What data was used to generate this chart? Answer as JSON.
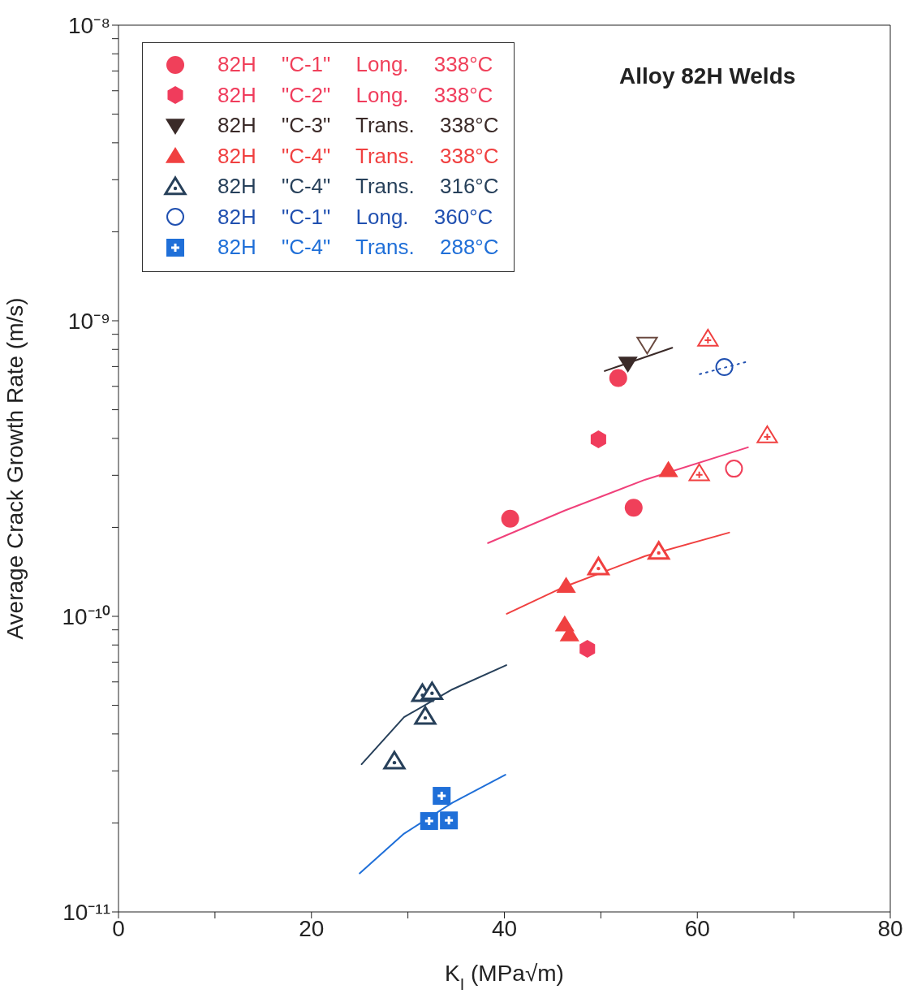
{
  "chart_data": {
    "type": "scatter",
    "title": "Alloy 82H Welds",
    "xlabel": "K$_{I}$   (MPa√m)",
    "ylabel": "Average Crack Growth Rate   (m/s)",
    "log": "y",
    "xlim": [
      0,
      80
    ],
    "ylim": [
      1e-11,
      1e-08
    ],
    "xticks": [
      0,
      {
        "value": 10,
        "label": null
      },
      20,
      {
        "value": 30,
        "label": null
      },
      40,
      {
        "value": 50,
        "label": null
      },
      60,
      {
        "value": 70,
        "label": null
      },
      80
    ],
    "yticks": [
      {
        "value": 1e-11,
        "label": "10⁻¹¹"
      },
      {
        "value": 2e-11,
        "label": null
      },
      {
        "value": 3e-11,
        "label": null
      },
      {
        "value": 4e-11,
        "label": null
      },
      {
        "value": 5e-11,
        "label": null
      },
      {
        "value": 6e-11,
        "label": null
      },
      {
        "value": 7e-11,
        "label": null
      },
      {
        "value": 8e-11,
        "label": null
      },
      {
        "value": 9e-11,
        "label": null
      },
      {
        "value": 1e-10,
        "label": "10⁻¹⁰"
      },
      {
        "value": 2e-10,
        "label": null
      },
      {
        "value": 3e-10,
        "label": null
      },
      {
        "value": 4e-10,
        "label": null
      },
      {
        "value": 5e-10,
        "label": null
      },
      {
        "value": 6e-10,
        "label": null
      },
      {
        "value": 7e-10,
        "label": null
      },
      {
        "value": 8e-10,
        "label": null
      },
      {
        "value": 9e-10,
        "label": null
      },
      {
        "value": 1e-09,
        "label": "10⁻⁹"
      },
      {
        "value": 2e-09,
        "label": null
      },
      {
        "value": 3e-09,
        "label": null
      },
      {
        "value": 4e-09,
        "label": null
      },
      {
        "value": 5e-09,
        "label": null
      },
      {
        "value": 6e-09,
        "label": null
      },
      {
        "value": 7e-09,
        "label": null
      },
      {
        "value": 8e-09,
        "label": null
      },
      {
        "value": 9e-09,
        "label": null
      },
      {
        "value": 1e-08,
        "label": "10⁻⁸"
      }
    ],
    "grid": false,
    "legend": "top left",
    "series": [
      {
        "name": "82H \"C-1\" Long. 338°C",
        "type": "scatter",
        "marker": "circle",
        "color": "#f0405a",
        "x": [
          51.8,
          40.6,
          53.4
        ],
        "values": [
          6.4e-10,
          2.14e-10,
          2.33e-10
        ]
      },
      {
        "name": "82H \"C-2\" Long. 338°C",
        "type": "scatter",
        "color": "#f03c5c",
        "x": [
          49.75,
          48.6
        ],
        "values": [
          3.97e-10,
          7.76e-11
        ]
      },
      {
        "name": "82H \"C-3\" Trans. 338°C",
        "type": "scatter",
        "marker": "triangle-down",
        "color": "#3a2a28",
        "x": [
          52.8
        ],
        "values": [
          7.15e-10
        ]
      },
      {
        "name": "82H \"C-4\" Trans. 338°C",
        "type": "scatter",
        "marker": "triangle",
        "color": "#f04040",
        "x": [
          57.0,
          46.4,
          46.25,
          46.75
        ],
        "values": [
          3.13e-10,
          1.27e-10,
          9.4e-11,
          8.7e-11
        ]
      },
      {
        "name": "82H \"C-4\" Trans. 316°C",
        "type": "scatter",
        "marker": "triangle-dot",
        "color": "#27405a",
        "x": [
          31.5,
          32.5,
          31.8,
          28.6
        ],
        "values": [
          5.48e-11,
          5.56e-11,
          4.59e-11,
          3.24e-11
        ]
      },
      {
        "name": "82H \"C-1\" Long. 360°C",
        "type": "scatter",
        "marker": "open-circle",
        "color": "#2050b0",
        "x": [
          62.8
        ],
        "values": [
          6.97e-10
        ]
      },
      {
        "name": "82H \"C-4\" Trans. 288°C",
        "type": "scatter",
        "marker": "square-plus",
        "color": "#1f6fd8",
        "x": [
          33.5,
          32.2,
          34.25
        ],
        "values": [
          2.47e-11,
          2.03e-11,
          2.04e-11
        ]
      },
      {
        "type": "scatter",
        "marker": "triangle-down-open",
        "color": "#6a4a40",
        "x": [
          54.8
        ],
        "values": [
          8.3e-10
        ]
      },
      {
        "type": "scatter",
        "marker": "triangle-dot",
        "color": "#f04040",
        "x": [
          49.75,
          56.0
        ],
        "values": [
          1.47e-10,
          1.66e-10
        ]
      },
      {
        "type": "scatter",
        "marker": "triangle-plus",
        "color": "#f04040",
        "x": [
          61.1,
          67.25,
          60.2
        ],
        "values": [
          8.7e-10,
          4.1e-10,
          3.05e-10
        ]
      },
      {
        "type": "scatter",
        "marker": "open-circle",
        "color": "#f0405a",
        "x": [
          63.8
        ],
        "values": [
          3.16e-10
        ]
      },
      {
        "type": "line",
        "color": "#f0407a",
        "line_style": "solid",
        "x": [
          38.3,
          46.25,
          54.6,
          65.25
        ],
        "values": [
          1.77e-10,
          2.28e-10,
          2.9e-10,
          3.73e-10
        ]
      },
      {
        "type": "line",
        "color": "#f04040",
        "line_style": "solid",
        "x": [
          40.25,
          46.25,
          54.6,
          63.3
        ],
        "values": [
          1.02e-10,
          1.26e-10,
          1.6e-10,
          1.92e-10
        ]
      },
      {
        "type": "line",
        "color": "#27405a",
        "line_style": "solid",
        "x": [
          25.2,
          29.6,
          34.6,
          40.2
        ],
        "values": [
          3.16e-11,
          4.56e-11,
          5.66e-11,
          6.84e-11
        ]
      },
      {
        "type": "line",
        "color": "#1f6fd8",
        "line_style": "solid",
        "x": [
          25.0,
          29.6,
          34.6,
          40.1
        ],
        "values": [
          1.35e-11,
          1.84e-11,
          2.34e-11,
          2.91e-11
        ]
      },
      {
        "type": "line",
        "color": "#3a2a28",
        "line_style": "solid",
        "x": [
          50.4,
          57.4
        ],
        "values": [
          6.76e-10,
          8.1e-10
        ]
      },
      {
        "type": "line",
        "color": "#2050b0",
        "line_style": "dotted",
        "x": [
          60.25,
          65.4
        ],
        "values": [
          6.6e-10,
          7.3e-10
        ]
      }
    ]
  }
}
